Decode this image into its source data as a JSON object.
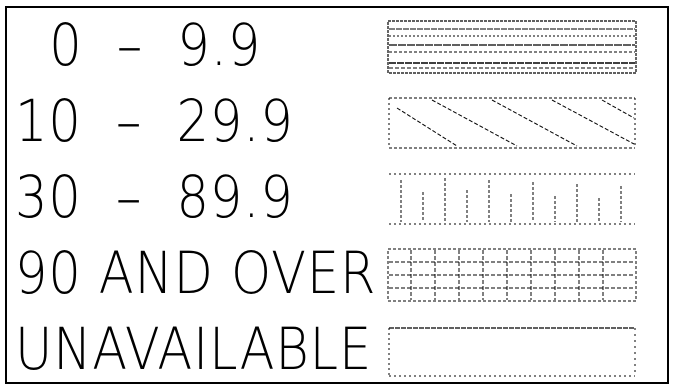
{
  "legend": {
    "items": [
      {
        "label": "  0  –  9.9",
        "pattern": "horizontal-lines-icon"
      },
      {
        "label": "10  –  29.9",
        "pattern": "diagonal-hatch-icon"
      },
      {
        "label": "30  –  89.9",
        "pattern": "vertical-stripes-icon"
      },
      {
        "label": "90 AND OVER",
        "pattern": "grid-pattern-icon"
      },
      {
        "label": "UNAVAILABLE",
        "pattern": "blank-pattern-icon"
      }
    ],
    "colors": {
      "ink": "#000000",
      "background": "#ffffff"
    }
  }
}
